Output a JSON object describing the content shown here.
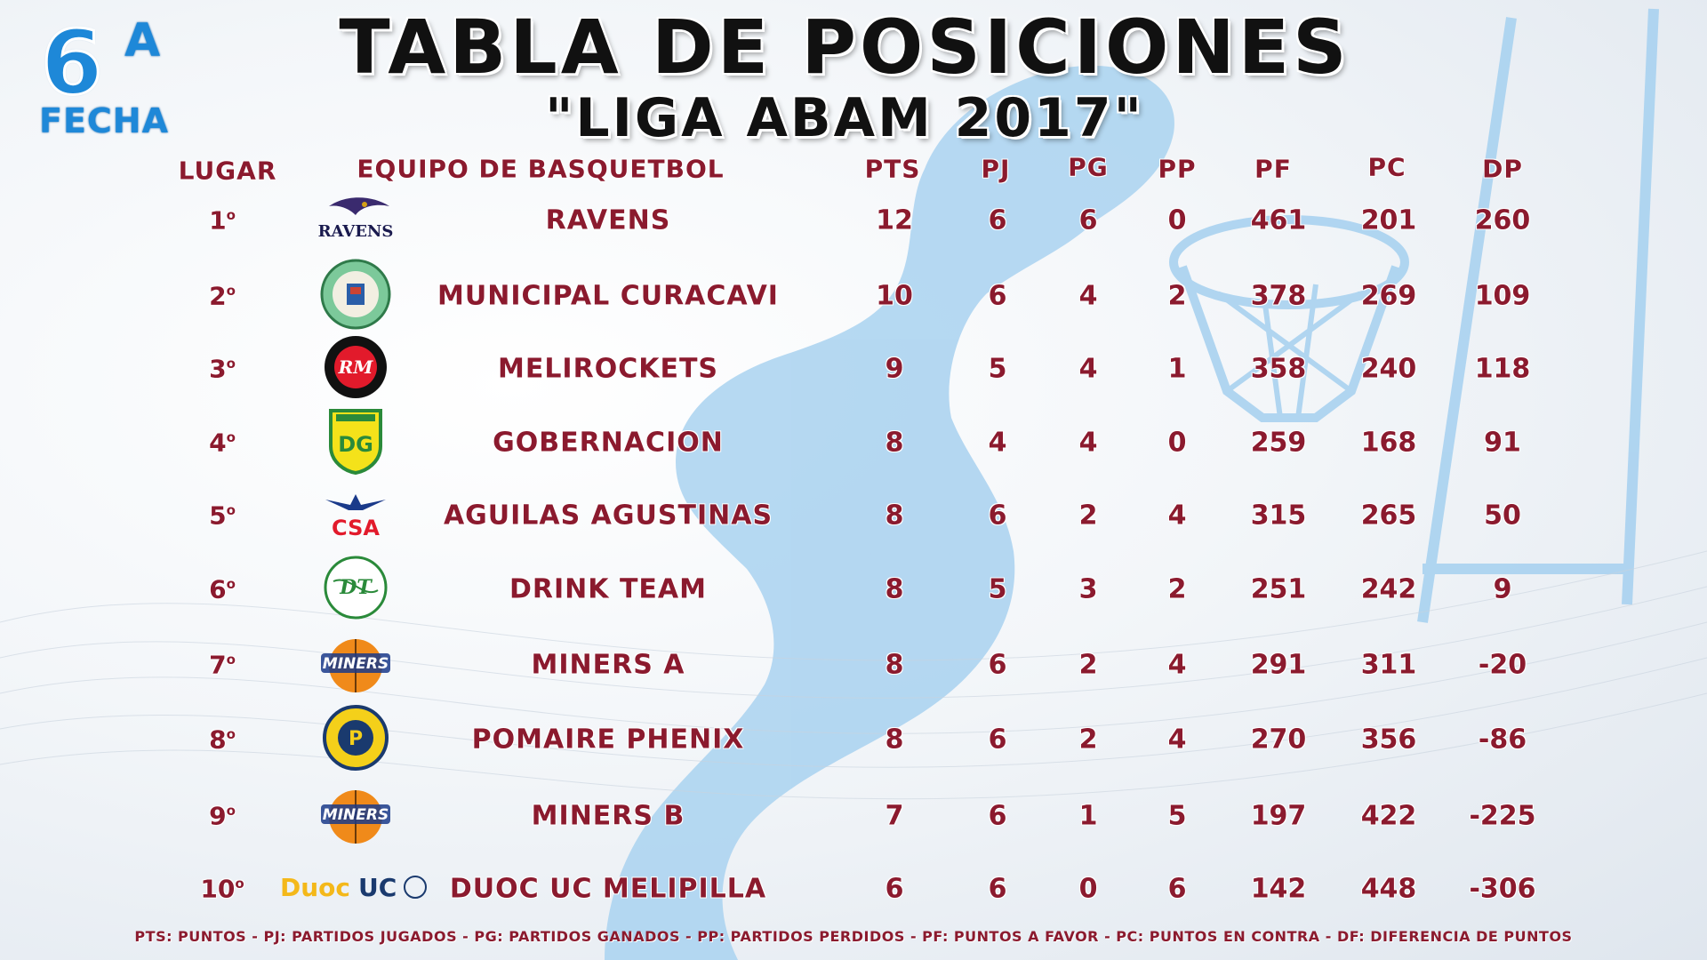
{
  "badge": {
    "number": "6",
    "sup": "A",
    "label": "FECHA"
  },
  "title": "TABLA DE POSICIONES",
  "subtitle": "\"LIGA ABAM 2017\"",
  "headers": {
    "lugar": "LUGAR",
    "equipo": "EQUIPO DE BASQUETBOL",
    "pts": "PTS",
    "pj": "PJ",
    "pg": "PG",
    "pp": "PP",
    "pf": "PF",
    "pc": "PC",
    "dp": "DP"
  },
  "rows": [
    {
      "lugar": "1",
      "ord": "o",
      "team": "RAVENS",
      "pts": "12",
      "pj": "6",
      "pg": "6",
      "pp": "0",
      "pf": "461",
      "pc": "201",
      "dp": "260",
      "logo": "ravens-logo",
      "logo_text": "RAVENS"
    },
    {
      "lugar": "2",
      "ord": "o",
      "team": "MUNICIPAL CURACAVI",
      "pts": "10",
      "pj": "6",
      "pg": "4",
      "pp": "2",
      "pf": "378",
      "pc": "269",
      "dp": "109",
      "logo": "curacavi-crest-logo",
      "logo_text": ""
    },
    {
      "lugar": "3",
      "ord": "o",
      "team": "MELIROCKETS",
      "pts": "9",
      "pj": "5",
      "pg": "4",
      "pp": "1",
      "pf": "358",
      "pc": "240",
      "dp": "118",
      "logo": "melirockets-logo",
      "logo_text": "RM"
    },
    {
      "lugar": "4",
      "ord": "o",
      "team": "GOBERNACION",
      "pts": "8",
      "pj": "4",
      "pg": "4",
      "pp": "0",
      "pf": "259",
      "pc": "168",
      "dp": "91",
      "logo": "dg-shield-logo",
      "logo_text": "DG"
    },
    {
      "lugar": "5",
      "ord": "o",
      "team": "AGUILAS AGUSTINAS",
      "pts": "8",
      "pj": "6",
      "pg": "2",
      "pp": "4",
      "pf": "315",
      "pc": "265",
      "dp": "50",
      "logo": "csa-eagle-logo",
      "logo_text": "CSA"
    },
    {
      "lugar": "6",
      "ord": "o",
      "team": "DRINK TEAM",
      "pts": "8",
      "pj": "5",
      "pg": "3",
      "pp": "2",
      "pf": "251",
      "pc": "242",
      "dp": "9",
      "logo": "drink-team-logo",
      "logo_text": "DT"
    },
    {
      "lugar": "7",
      "ord": "o",
      "team": "MINERS A",
      "pts": "8",
      "pj": "6",
      "pg": "2",
      "pp": "4",
      "pf": "291",
      "pc": "311",
      "dp": "-20",
      "logo": "miners-logo",
      "logo_text": "MINERS"
    },
    {
      "lugar": "8",
      "ord": "o",
      "team": "POMAIRE PHENIX",
      "pts": "8",
      "pj": "6",
      "pg": "2",
      "pp": "4",
      "pf": "270",
      "pc": "356",
      "dp": "-86",
      "logo": "pomaire-phenix-logo",
      "logo_text": "P"
    },
    {
      "lugar": "9",
      "ord": "o",
      "team": "MINERS B",
      "pts": "7",
      "pj": "6",
      "pg": "1",
      "pp": "5",
      "pf": "197",
      "pc": "422",
      "dp": "-225",
      "logo": "miners-logo",
      "logo_text": "MINERS"
    },
    {
      "lugar": "10",
      "ord": "o",
      "team": "DUOC UC MELIPILLA",
      "pts": "6",
      "pj": "6",
      "pg": "0",
      "pp": "6",
      "pf": "142",
      "pc": "448",
      "dp": "-306",
      "logo": "duoc-uc-logo",
      "logo_text": "DuocUC"
    }
  ],
  "footer": "PTS: PUNTOS - PJ: PARTIDOS JUGADOS - PG: PARTIDOS GANADOS - PP: PARTIDOS PERDIDOS - PF: PUNTOS A FAVOR - PC: PUNTOS EN CONTRA - DF: DIFERENCIA DE PUNTOS",
  "colors": {
    "text": "#8b1a2e",
    "accent_blue": "#1e88d8",
    "silhouette": "#a9d2f0",
    "title": "#111111"
  }
}
